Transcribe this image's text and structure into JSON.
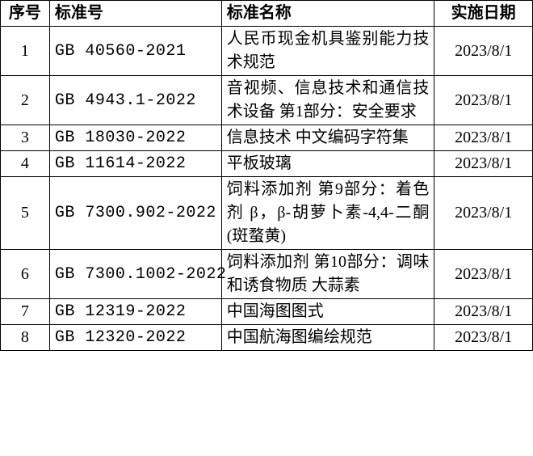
{
  "table": {
    "columns": [
      "序号",
      "标准号",
      "标准名称",
      "实施日期"
    ],
    "rows": [
      {
        "seq": "1",
        "code": "GB 40560-2021",
        "name": "人民币现金机具鉴别能力技术规范",
        "date": "2023/8/1"
      },
      {
        "seq": "2",
        "code": "GB 4943.1-2022",
        "name": "音视频、信息技术和通信技术设备 第1部分：安全要求",
        "date": "2023/8/1"
      },
      {
        "seq": "3",
        "code": "GB 18030-2022",
        "name": "信息技术 中文编码字符集",
        "date": "2023/8/1"
      },
      {
        "seq": "4",
        "code": "GB 11614-2022",
        "name": "平板玻璃",
        "date": "2023/8/1"
      },
      {
        "seq": "5",
        "code": "GB 7300.902-2022",
        "name": "饲料添加剂 第9部分：着色剂 β，β-胡萝卜素-4,4-二酮(斑蝥黄)",
        "date": "2023/8/1"
      },
      {
        "seq": "6",
        "code": "GB 7300.1002-2022",
        "name": "饲料添加剂 第10部分：调味和诱食物质 大蒜素",
        "date": "2023/8/1"
      },
      {
        "seq": "7",
        "code": "GB 12319-2022",
        "name": "中国海图图式",
        "date": "2023/8/1"
      },
      {
        "seq": "8",
        "code": "GB 12320-2022",
        "name": "中国航海图编绘规范",
        "date": "2023/8/1"
      }
    ]
  }
}
